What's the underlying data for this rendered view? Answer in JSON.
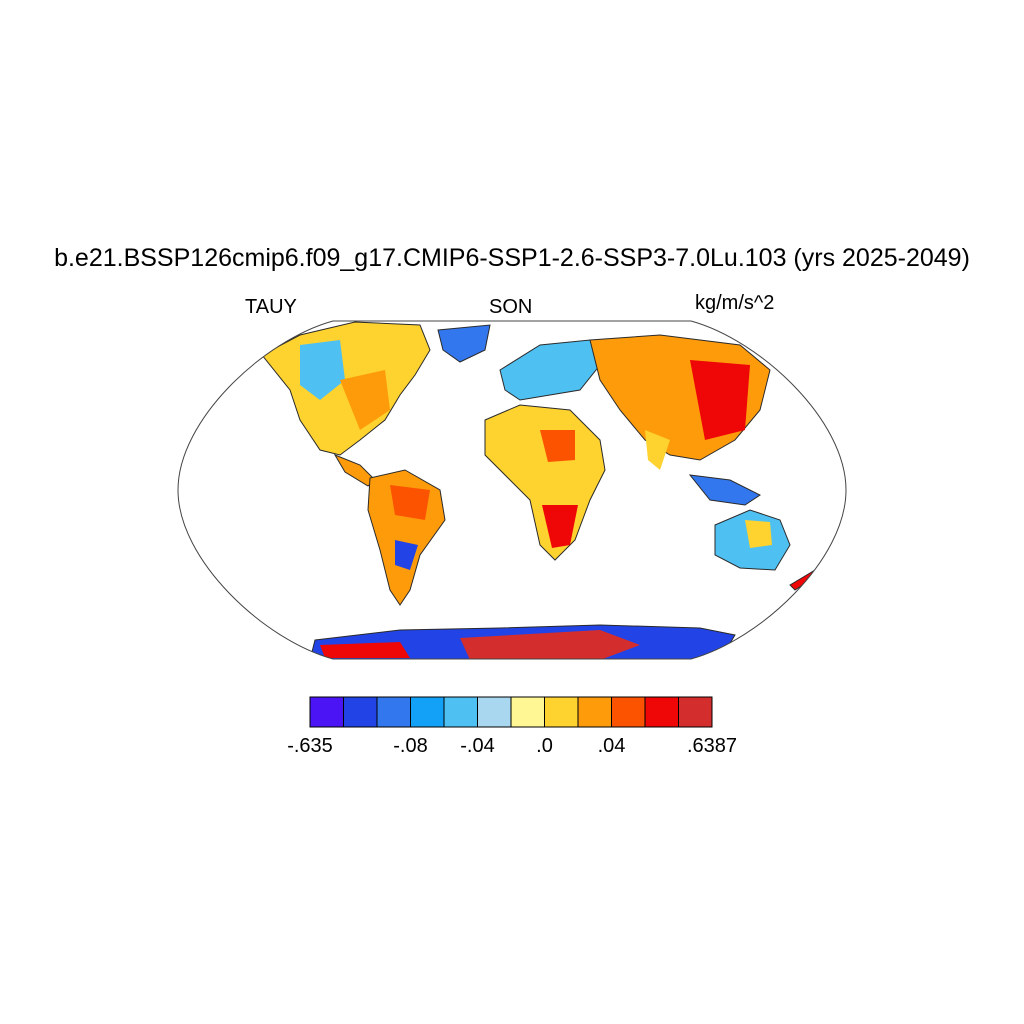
{
  "title": "b.e21.BSSP126cmip6.f09_g17.CMIP6-SSP1-2.6-SSP3-7.0Lu.103 (yrs 2025-2049)",
  "left_label": "TAUY",
  "center_label": "SON",
  "right_label": "kg/m/s^2",
  "colorbar": {
    "colors": [
      "#4a14f5",
      "#2244e6",
      "#3377ee",
      "#13a1f7",
      "#4ec0f2",
      "#a9d7ef",
      "#fef793",
      "#fed22f",
      "#fe9b0b",
      "#fc5301",
      "#ef0606",
      "#d42d2d"
    ],
    "labels": [
      {
        "text": "-.635",
        "boundary": 0
      },
      {
        "text": "-.08",
        "boundary": 3
      },
      {
        "text": "-.04",
        "boundary": 5
      },
      {
        "text": ".0",
        "boundary": 7
      },
      {
        "text": ".04",
        "boundary": 9
      },
      {
        "text": ".6387",
        "boundary": 12
      }
    ]
  }
}
